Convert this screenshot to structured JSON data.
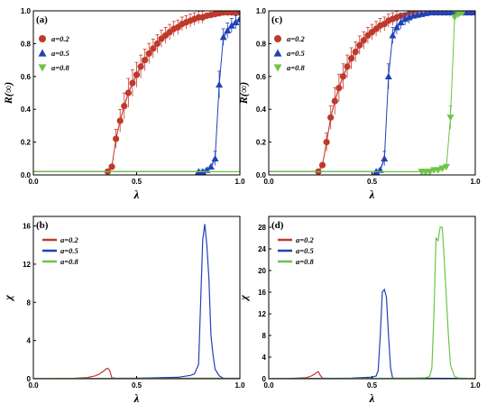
{
  "colors": {
    "a02": "#c0392b",
    "a05": "#2241b8",
    "a08": "#6ec447",
    "band02": "#f4a6c8",
    "band05": "#7fa7ee",
    "band08": "#a8e08f"
  },
  "chart_data": [
    {
      "panel_label": "(a)",
      "type": "scatter",
      "ylabel": "R(∞)",
      "xlabel": "λ",
      "xlim": [
        0,
        1
      ],
      "ylim": [
        0,
        1
      ],
      "xticks": [
        "0.0",
        "0.5",
        "1.0"
      ],
      "yticks": [
        "0.0",
        "0.2",
        "0.4",
        "0.6",
        "0.8",
        "1.0"
      ],
      "legend_position": "top-left",
      "series": [
        {
          "name": "a=0.2",
          "marker": "circle",
          "color": "#c0392b",
          "x": [
            0.36,
            0.38,
            0.4,
            0.42,
            0.44,
            0.46,
            0.48,
            0.5,
            0.52,
            0.54,
            0.56,
            0.58,
            0.6,
            0.62,
            0.64,
            0.66,
            0.68,
            0.7,
            0.72,
            0.74,
            0.76,
            0.78,
            0.8,
            0.82,
            0.84,
            0.86,
            0.88,
            0.9,
            0.92,
            0.94,
            0.96,
            0.98,
            1.0
          ],
          "y": [
            0.02,
            0.05,
            0.22,
            0.33,
            0.42,
            0.5,
            0.56,
            0.61,
            0.66,
            0.7,
            0.74,
            0.77,
            0.8,
            0.83,
            0.85,
            0.87,
            0.89,
            0.9,
            0.92,
            0.93,
            0.94,
            0.95,
            0.96,
            0.96,
            0.97,
            0.975,
            0.98,
            0.985,
            0.99,
            0.99,
            0.99,
            0.99,
            0.99
          ]
        },
        {
          "name": "a=0.5",
          "marker": "triangle-up",
          "color": "#2241b8",
          "x": [
            0.8,
            0.82,
            0.84,
            0.86,
            0.88,
            0.9,
            0.92,
            0.94,
            0.96,
            0.98,
            1.0
          ],
          "y": [
            0.02,
            0.02,
            0.03,
            0.05,
            0.1,
            0.55,
            0.84,
            0.88,
            0.91,
            0.93,
            0.95
          ]
        },
        {
          "name": "a=0.8",
          "marker": "triangle-down",
          "color": "#6ec447",
          "x": [],
          "y": []
        }
      ]
    },
    {
      "panel_label": "(c)",
      "type": "scatter",
      "ylabel": "R(∞)",
      "xlabel": "λ",
      "xlim": [
        0,
        1
      ],
      "ylim": [
        0,
        1
      ],
      "xticks": [
        "0.0",
        "0.5",
        "1.0"
      ],
      "yticks": [
        "0.0",
        "0.2",
        "0.4",
        "0.6",
        "0.8",
        "1.0"
      ],
      "legend_position": "top-left",
      "series": [
        {
          "name": "a=0.2",
          "marker": "circle",
          "color": "#c0392b",
          "x": [
            0.24,
            0.26,
            0.28,
            0.3,
            0.32,
            0.34,
            0.36,
            0.38,
            0.4,
            0.42,
            0.44,
            0.46,
            0.48,
            0.5,
            0.52,
            0.54,
            0.56,
            0.58,
            0.6,
            0.62,
            0.64,
            0.66,
            0.68,
            0.7,
            0.72,
            0.74,
            0.76,
            0.78,
            0.8,
            0.82,
            0.84,
            0.86,
            0.88,
            0.9,
            0.92,
            0.94,
            0.96,
            0.98,
            1.0
          ],
          "y": [
            0.02,
            0.06,
            0.2,
            0.35,
            0.45,
            0.53,
            0.6,
            0.66,
            0.71,
            0.75,
            0.79,
            0.82,
            0.85,
            0.87,
            0.89,
            0.91,
            0.92,
            0.94,
            0.95,
            0.96,
            0.97,
            0.97,
            0.98,
            0.98,
            0.985,
            0.99,
            0.99,
            0.99,
            0.99,
            0.99,
            0.99,
            0.99,
            0.99,
            0.99,
            0.99,
            0.99,
            0.99,
            0.99,
            0.99
          ]
        },
        {
          "name": "a=0.5",
          "marker": "triangle-up",
          "color": "#2241b8",
          "x": [
            0.52,
            0.54,
            0.56,
            0.58,
            0.6,
            0.62,
            0.64,
            0.66,
            0.68,
            0.7,
            0.72,
            0.74,
            0.76,
            0.78,
            0.8,
            0.82,
            0.84,
            0.86,
            0.88,
            0.9,
            0.92,
            0.94,
            0.96,
            0.98,
            1.0
          ],
          "y": [
            0.02,
            0.03,
            0.1,
            0.6,
            0.85,
            0.9,
            0.93,
            0.95,
            0.96,
            0.97,
            0.975,
            0.98,
            0.985,
            0.99,
            0.99,
            0.99,
            0.99,
            0.99,
            0.99,
            0.99,
            0.99,
            0.99,
            0.99,
            0.99,
            0.99
          ]
        },
        {
          "name": "a=0.8",
          "marker": "triangle-down",
          "color": "#6ec447",
          "x": [
            0.74,
            0.76,
            0.78,
            0.8,
            0.82,
            0.84,
            0.86,
            0.88,
            0.9,
            0.92,
            0.94
          ],
          "y": [
            0.02,
            0.02,
            0.02,
            0.03,
            0.03,
            0.04,
            0.05,
            0.35,
            0.96,
            0.98,
            0.99
          ]
        }
      ]
    },
    {
      "panel_label": "(b)",
      "type": "line",
      "ylabel": "χ",
      "xlabel": "λ",
      "xlim": [
        0,
        1
      ],
      "ylim": [
        0,
        17
      ],
      "xticks": [
        "0.0",
        "0.5",
        "1.0"
      ],
      "yticks": [
        "0",
        "4",
        "8",
        "12",
        "16"
      ],
      "legend_position": "top-left",
      "series": [
        {
          "name": "a=0.2",
          "color": "#c0392b",
          "x": [
            0.0,
            0.1,
            0.2,
            0.26,
            0.3,
            0.32,
            0.34,
            0.35,
            0.36,
            0.37,
            0.38,
            0.4,
            0.5,
            0.7,
            0.85,
            1.0
          ],
          "y": [
            0.0,
            0.02,
            0.05,
            0.12,
            0.3,
            0.5,
            0.8,
            1.0,
            1.1,
            0.85,
            0.1,
            0.06,
            0.05,
            0.05,
            0.05,
            0.05
          ]
        },
        {
          "name": "a=0.5",
          "color": "#2241b8",
          "x": [
            0.0,
            0.5,
            0.7,
            0.76,
            0.78,
            0.8,
            0.81,
            0.82,
            0.83,
            0.84,
            0.85,
            0.86,
            0.87,
            0.88,
            0.9,
            0.92,
            1.0
          ],
          "y": [
            0.0,
            0.05,
            0.15,
            0.35,
            0.5,
            1.5,
            8.0,
            14.5,
            16.2,
            14.0,
            10.5,
            4.5,
            2.5,
            1.0,
            0.3,
            0.05,
            0.02
          ]
        },
        {
          "name": "a=0.8",
          "color": "#6ec447",
          "x": [
            0.0,
            1.0
          ],
          "y": [
            0.03,
            0.03
          ]
        }
      ]
    },
    {
      "panel_label": "(d)",
      "type": "line",
      "ylabel": "χ",
      "xlabel": "λ",
      "xlim": [
        0,
        1
      ],
      "ylim": [
        0,
        30
      ],
      "xticks": [
        "0.0",
        "0.5",
        "1.0"
      ],
      "yticks": [
        "0",
        "4",
        "8",
        "12",
        "16",
        "20",
        "24",
        "28"
      ],
      "legend_position": "top-left",
      "series": [
        {
          "name": "a=0.2",
          "color": "#c0392b",
          "x": [
            0.0,
            0.1,
            0.18,
            0.2,
            0.22,
            0.23,
            0.24,
            0.25,
            0.26,
            0.3,
            1.0
          ],
          "y": [
            0.0,
            0.05,
            0.2,
            0.4,
            0.8,
            1.1,
            1.3,
            0.6,
            0.1,
            0.05,
            0.05
          ]
        },
        {
          "name": "a=0.5",
          "color": "#2241b8",
          "x": [
            0.0,
            0.4,
            0.5,
            0.52,
            0.53,
            0.54,
            0.55,
            0.56,
            0.57,
            0.58,
            0.59,
            0.6,
            1.0
          ],
          "y": [
            0.0,
            0.1,
            0.3,
            0.5,
            1.5,
            8.0,
            16.0,
            16.5,
            15.0,
            8.0,
            2.0,
            0.1,
            0.05
          ]
        },
        {
          "name": "a=0.8",
          "color": "#6ec447",
          "x": [
            0.0,
            0.7,
            0.76,
            0.78,
            0.79,
            0.8,
            0.81,
            0.82,
            0.83,
            0.84,
            0.85,
            0.86,
            0.87,
            0.88,
            0.9,
            0.92,
            1.0
          ],
          "y": [
            0.0,
            0.1,
            0.2,
            0.5,
            2.0,
            12.0,
            26.0,
            25.5,
            28.0,
            28.0,
            22.0,
            15.0,
            8.0,
            2.5,
            0.4,
            0.1,
            0.05
          ]
        }
      ]
    }
  ]
}
